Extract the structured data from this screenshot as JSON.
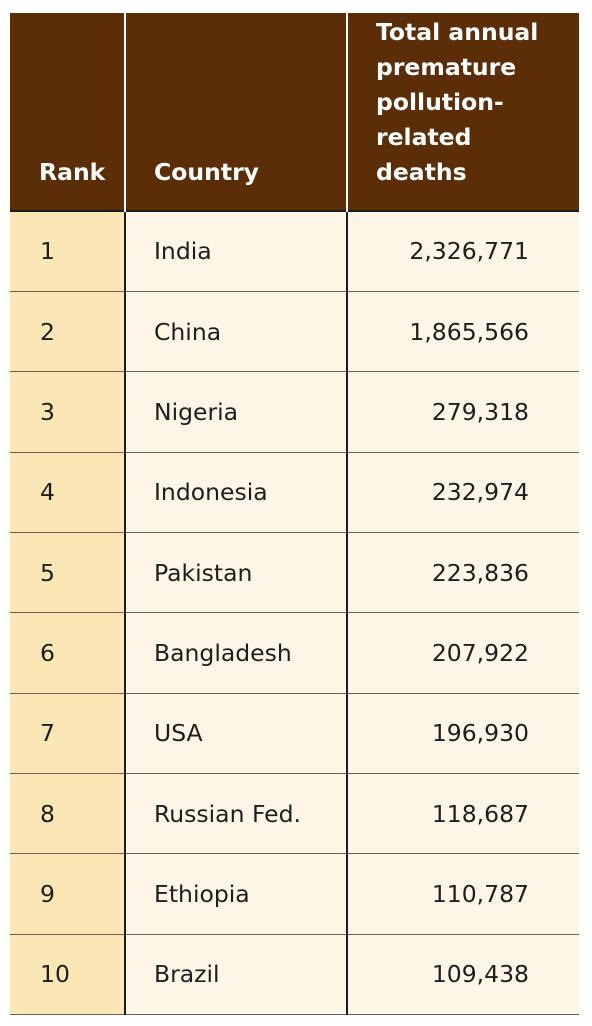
{
  "table": {
    "headers": {
      "rank": "Rank",
      "country": "Country",
      "deaths": "Total annual premature pollution-related deaths"
    },
    "rows": [
      {
        "rank": "1",
        "country": "India",
        "deaths": "2,326,771"
      },
      {
        "rank": "2",
        "country": "China",
        "deaths": "1,865,566"
      },
      {
        "rank": "3",
        "country": "Nigeria",
        "deaths": "279,318"
      },
      {
        "rank": "4",
        "country": "Indonesia",
        "deaths": "232,974"
      },
      {
        "rank": "5",
        "country": "Pakistan",
        "deaths": "223,836"
      },
      {
        "rank": "6",
        "country": "Bangladesh",
        "deaths": "207,922"
      },
      {
        "rank": "7",
        "country": "USA",
        "deaths": "196,930"
      },
      {
        "rank": "8",
        "country": "Russian Fed.",
        "deaths": "118,687"
      },
      {
        "rank": "9",
        "country": "Ethiopia",
        "deaths": "110,787"
      },
      {
        "rank": "10",
        "country": "Brazil",
        "deaths": "109,438"
      }
    ]
  },
  "colors": {
    "header_background": "#5c2e07",
    "rank_column_background": "#fbe7b5",
    "body_background": "#fdf6e6"
  }
}
